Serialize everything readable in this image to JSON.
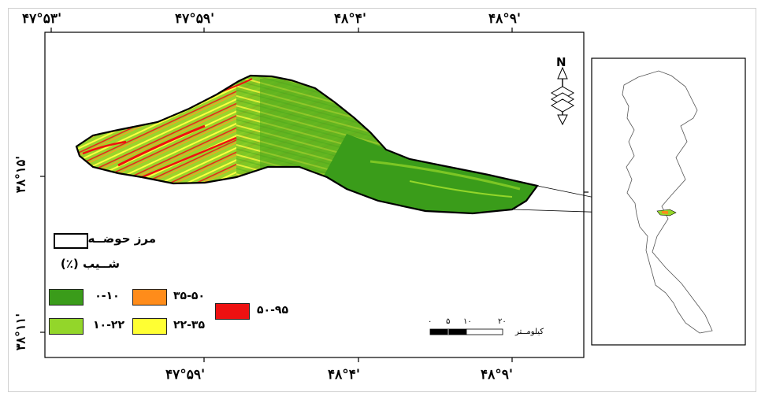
{
  "coordinates": {
    "top": [
      "۴۷°۵۳'",
      "۴۷°۵۹'",
      "۴۸°۴'",
      "۴۸°۹'"
    ],
    "bottom": [
      "۴۷°۵۹'",
      "۴۸°۴'",
      "۴۸°۹'"
    ],
    "left": [
      "۳۸°۱۵'",
      "۳۸°۱۱'"
    ]
  },
  "north_arrow": {
    "label": "N",
    "icon": "north-arrow-icon"
  },
  "legend": {
    "boundary_label": "مرز حوضــه",
    "slope_title": "شــیب (٪)",
    "classes": [
      {
        "label": "۰-۱۰",
        "color": "#3a9c1a"
      },
      {
        "label": "۱۰-۲۲",
        "color": "#93d62a"
      },
      {
        "label": "۲۲-۳۵",
        "color": "#ffff33"
      },
      {
        "label": "۳۵-۵۰",
        "color": "#ff8c1a"
      },
      {
        "label": "۵۰-۹۵",
        "color": "#ee1111"
      }
    ]
  },
  "scale_bar": {
    "ticks": [
      "۰",
      "۵",
      "۱۰",
      "۲۰"
    ],
    "unit": "کیلومــتر"
  }
}
